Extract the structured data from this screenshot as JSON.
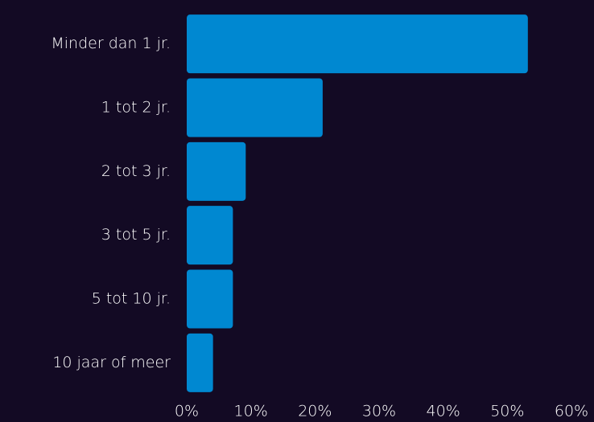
{
  "chart_data": {
    "type": "bar",
    "orientation": "horizontal",
    "categories": [
      "Minder dan 1 jr.",
      "1 tot 2 jr.",
      "2 tot 3 jr.",
      "3 tot 5 jr.",
      "5 tot 10 jr.",
      "10 jaar of meer"
    ],
    "values": [
      53.2,
      21.2,
      9.2,
      7.2,
      7.2,
      4.1
    ],
    "color": "#0088d1",
    "xlim": [
      0,
      60
    ],
    "xticks": [
      {
        "value": 0,
        "label": "0%"
      },
      {
        "value": 10,
        "label": "10%"
      },
      {
        "value": 20,
        "label": "20%"
      },
      {
        "value": 30,
        "label": "30%"
      },
      {
        "value": 40,
        "label": "40%"
      },
      {
        "value": 50,
        "label": "50%"
      },
      {
        "value": 60,
        "label": "60%"
      }
    ],
    "grid": false
  }
}
